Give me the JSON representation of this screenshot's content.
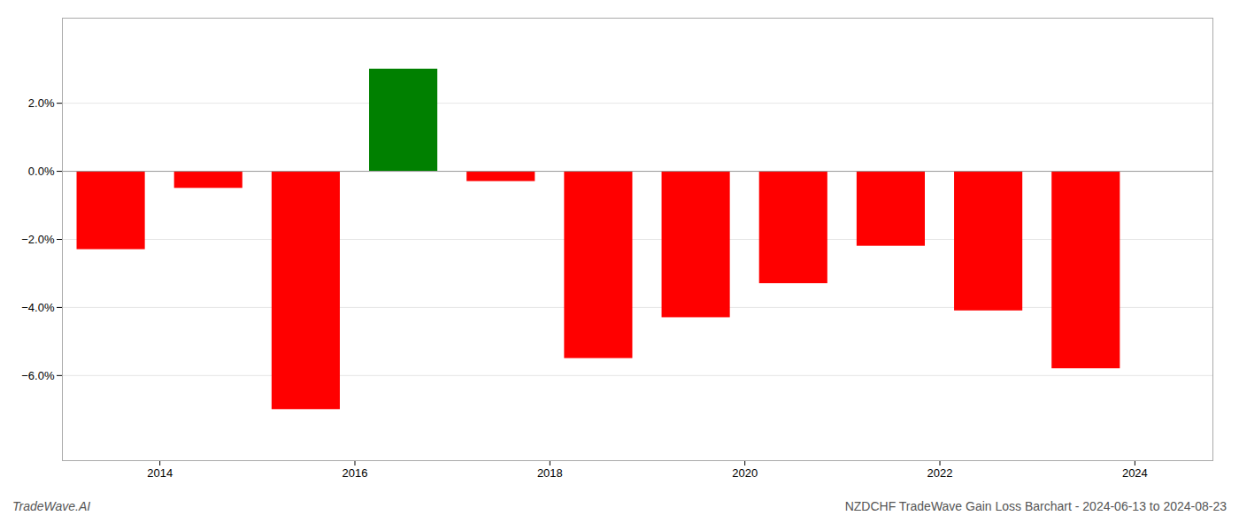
{
  "chart_data": {
    "type": "bar",
    "x": [
      2013.5,
      2014.5,
      2015.5,
      2016.5,
      2017.5,
      2018.5,
      2019.5,
      2020.5,
      2021.5,
      2022.5,
      2023.5
    ],
    "values": [
      -0.023,
      -0.005,
      -0.07,
      0.03,
      -0.003,
      -0.055,
      -0.043,
      -0.033,
      -0.022,
      -0.041,
      -0.058
    ],
    "colors": [
      "#ff0000",
      "#ff0000",
      "#ff0000",
      "#008000",
      "#ff0000",
      "#ff0000",
      "#ff0000",
      "#ff0000",
      "#ff0000",
      "#ff0000",
      "#ff0000"
    ],
    "xlim": [
      2013.0,
      2024.8
    ],
    "xticks": [
      2014,
      2016,
      2018,
      2020,
      2022,
      2024
    ],
    "ylim": [
      -0.085,
      0.045
    ],
    "yticks": [
      {
        "value": 0.02,
        "label": "2.0%"
      },
      {
        "value": 0,
        "label": "0.0%"
      },
      {
        "value": -0.02,
        "label": "−2.0%"
      },
      {
        "value": -0.04,
        "label": "−4.0%"
      },
      {
        "value": -0.06,
        "label": "−6.0%"
      }
    ],
    "grid": true,
    "annotations": [
      "TradeWave.AI",
      "NZDCHF TradeWave Gain Loss Barchart - 2024-06-13 to 2024-08-23"
    ]
  }
}
